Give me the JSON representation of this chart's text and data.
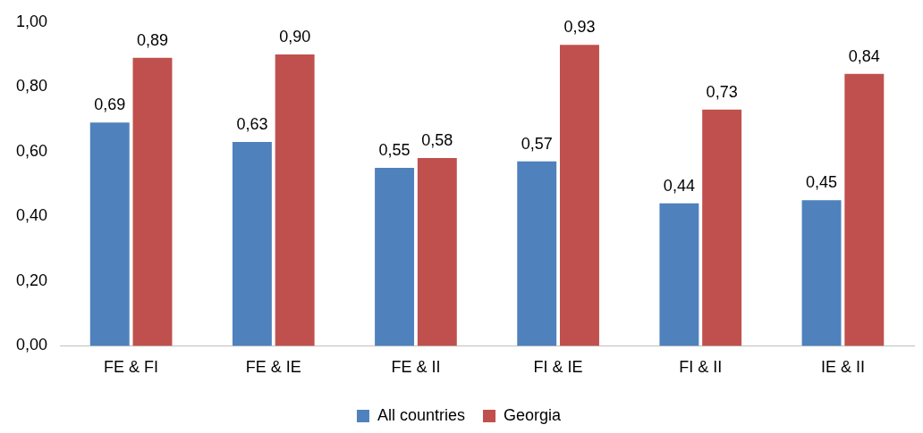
{
  "chart_data": {
    "type": "bar",
    "categories": [
      "FE & FI",
      "FE & IE",
      "FE & II",
      "FI & IE",
      "FI & II",
      "IE & II"
    ],
    "series": [
      {
        "name": "All countries",
        "color": "#4f81bd",
        "values": [
          0.69,
          0.63,
          0.55,
          0.57,
          0.44,
          0.45
        ],
        "value_labels": [
          "0,69",
          "0,63",
          "0,55",
          "0,57",
          "0,44",
          "0,45"
        ]
      },
      {
        "name": "Georgia",
        "color": "#c0504d",
        "values": [
          0.89,
          0.9,
          0.58,
          0.93,
          0.73,
          0.84
        ],
        "value_labels": [
          "0,89",
          "0,90",
          "0,58",
          "0,93",
          "0,73",
          "0,84"
        ]
      }
    ],
    "ylim": [
      0,
      1
    ],
    "yticks": [
      {
        "value": 0,
        "label": "0,00"
      },
      {
        "value": 0.2,
        "label": "0,20"
      },
      {
        "value": 0.4,
        "label": "0,40"
      },
      {
        "value": 0.6,
        "label": "0,60"
      },
      {
        "value": 0.8,
        "label": "0,80"
      },
      {
        "value": 1,
        "label": "1,00"
      }
    ],
    "grid": false,
    "legend": "bottom"
  }
}
